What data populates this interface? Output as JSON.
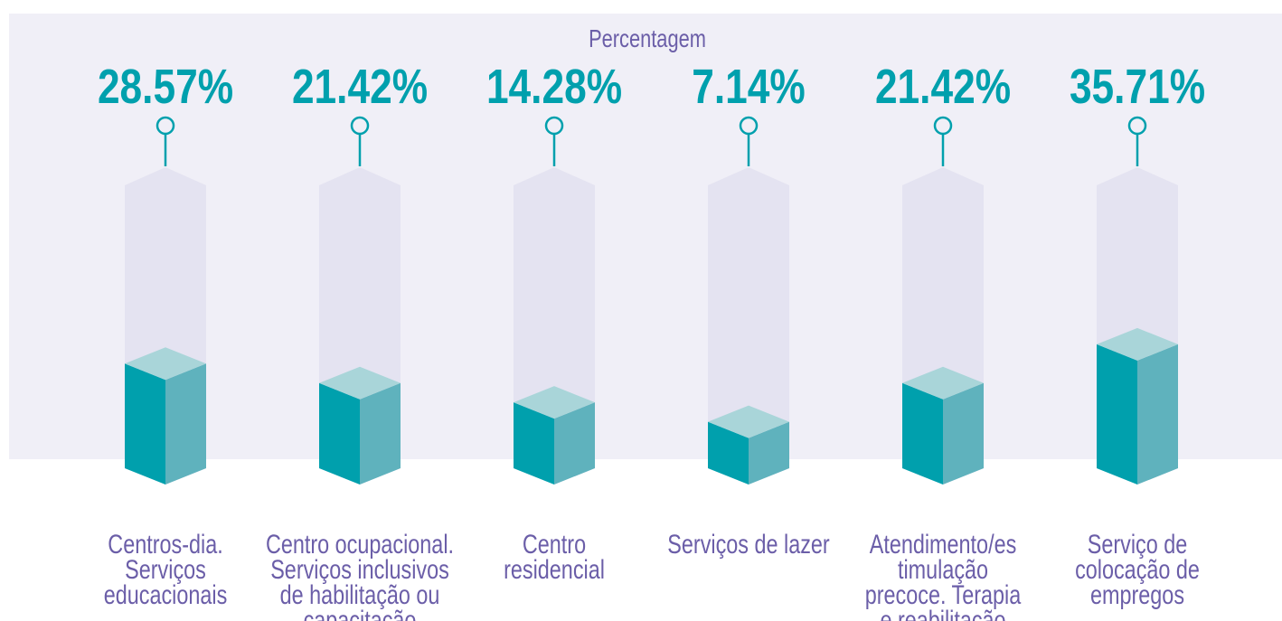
{
  "chart_data": {
    "type": "cube-bar",
    "subtitle": "Percentagem",
    "categories": [
      [
        "Centros-dia.",
        "Serviços",
        "educacionais"
      ],
      [
        "Centro ocupacional.",
        "Serviços inclusivos",
        "de habilitação ou",
        "capacitação"
      ],
      [
        "Centro",
        "residencial"
      ],
      [
        "Serviços de lazer"
      ],
      [
        "Atendimento/es",
        "timulação",
        "precoce. Terapia",
        "e reabilitação"
      ],
      [
        "Serviço de",
        "colocação de",
        "empregos"
      ]
    ],
    "values": [
      28.57,
      21.42,
      14.28,
      7.14,
      21.42,
      35.71
    ],
    "value_labels": [
      "28.57%",
      "21.42%",
      "14.28%",
      "7.14%",
      "21.42%",
      "35.71%"
    ],
    "colors": {
      "front": "#00a0ad",
      "side": "#5fb2bd",
      "top": "#a9d5d9",
      "column": "#e4e3f1",
      "panel": "#f0eff7"
    }
  }
}
